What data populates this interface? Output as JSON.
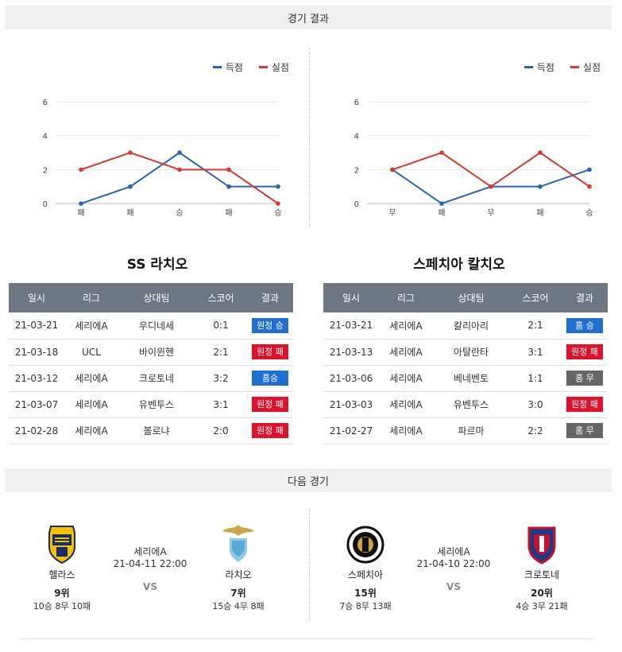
{
  "sections": {
    "results_title": "경기 결과",
    "next_title": "다음 경기"
  },
  "legend": {
    "scored": "득점",
    "conceded": "실점"
  },
  "colors": {
    "scored": "#2a63b8",
    "conceded": "#d43a2a",
    "win": "#1f6fd1",
    "loss": "#e0122b",
    "draw": "#666666",
    "header": "#6e7681"
  },
  "charts": [
    {
      "type": "line",
      "categories": [
        "패",
        "패",
        "승",
        "패",
        "승"
      ],
      "yticks": [
        0,
        2,
        4,
        6
      ],
      "ylim": [
        0,
        6
      ],
      "series": [
        {
          "name": "득점",
          "values": [
            0,
            1,
            3,
            1,
            1
          ]
        },
        {
          "name": "실점",
          "values": [
            2,
            3,
            2,
            2,
            0
          ]
        }
      ]
    },
    {
      "type": "line",
      "categories": [
        "무",
        "패",
        "무",
        "패",
        "승"
      ],
      "yticks": [
        0,
        2,
        4,
        6
      ],
      "ylim": [
        0,
        6
      ],
      "series": [
        {
          "name": "득점",
          "values": [
            2,
            0,
            1,
            1,
            2
          ]
        },
        {
          "name": "실점",
          "values": [
            2,
            3,
            1,
            3,
            1
          ]
        }
      ]
    }
  ],
  "tables": [
    {
      "team": "SS 라치오",
      "headers": [
        "일시",
        "리그",
        "상대팀",
        "스코어",
        "결과"
      ],
      "rows": [
        {
          "date": "21-03-21",
          "league": "세리에A",
          "opponent": "우디네세",
          "score": "0:1",
          "result": "원정 승",
          "kind": "win"
        },
        {
          "date": "21-03-18",
          "league": "UCL",
          "opponent": "바이윈헨",
          "score": "2:1",
          "result": "원정 패",
          "kind": "loss"
        },
        {
          "date": "21-03-12",
          "league": "세리에A",
          "opponent": "크로토네",
          "score": "3:2",
          "result": "홈승",
          "kind": "win"
        },
        {
          "date": "21-03-07",
          "league": "세리에A",
          "opponent": "유벤투스",
          "score": "3:1",
          "result": "원정 패",
          "kind": "loss"
        },
        {
          "date": "21-02-28",
          "league": "세리에A",
          "opponent": "볼로냐",
          "score": "2:0",
          "result": "원정 패",
          "kind": "loss"
        }
      ]
    },
    {
      "team": "스페치아 칼치오",
      "headers": [
        "일시",
        "리그",
        "상대팀",
        "스코어",
        "결과"
      ],
      "rows": [
        {
          "date": "21-03-21",
          "league": "세리에A",
          "opponent": "칼리아리",
          "score": "2:1",
          "result": "홈 승",
          "kind": "win"
        },
        {
          "date": "21-03-13",
          "league": "세리에A",
          "opponent": "아탈란타",
          "score": "3:1",
          "result": "원정 패",
          "kind": "loss"
        },
        {
          "date": "21-03-06",
          "league": "세리에A",
          "opponent": "베네벤토",
          "score": "1:1",
          "result": "홈 무",
          "kind": "draw"
        },
        {
          "date": "21-03-03",
          "league": "세리에A",
          "opponent": "유벤투스",
          "score": "3:0",
          "result": "원정 패",
          "kind": "loss"
        },
        {
          "date": "21-02-27",
          "league": "세리에A",
          "opponent": "파르마",
          "score": "2:2",
          "result": "홈 무",
          "kind": "draw"
        }
      ]
    }
  ],
  "matches": [
    {
      "home": {
        "name": "헬라스",
        "rank": "9위",
        "record": "10승 8무 10패",
        "logo": "verona-logo"
      },
      "league": "세리에A",
      "datetime": "21-04-11 22:00",
      "vs": "VS",
      "away": {
        "name": "라치오",
        "rank": "7위",
        "record": "15승 4무 8패",
        "logo": "lazio-logo"
      }
    },
    {
      "home": {
        "name": "스페치아",
        "rank": "15위",
        "record": "7승 8무 13패",
        "logo": "spezia-logo"
      },
      "league": "세리에A",
      "datetime": "21-04-10 22:00",
      "vs": "VS",
      "away": {
        "name": "크로토네",
        "rank": "20위",
        "record": "4승 3무 21패",
        "logo": "crotone-logo"
      }
    }
  ]
}
